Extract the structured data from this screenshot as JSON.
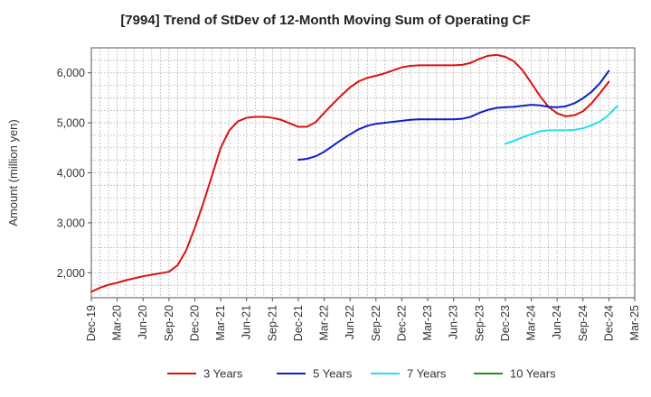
{
  "chart_data": {
    "type": "line",
    "title": "[7994]  Trend of StDev of 12-Month Moving Sum of Operating CF",
    "ylabel": "Amount (million yen)",
    "xlabel": "",
    "ylim": [
      1500,
      6500
    ],
    "y_ticks": [
      2000,
      3000,
      4000,
      5000,
      6000
    ],
    "y_tick_labels": [
      "2,000",
      "3,000",
      "4,000",
      "5,000",
      "6,000"
    ],
    "x_tick_labels": [
      "Dec-19",
      "Mar-20",
      "Jun-20",
      "Sep-20",
      "Dec-20",
      "Mar-21",
      "Jun-21",
      "Sep-21",
      "Dec-21",
      "Mar-22",
      "Jun-22",
      "Sep-22",
      "Dec-22",
      "Mar-23",
      "Jun-23",
      "Sep-23",
      "Dec-23",
      "Mar-24",
      "Jun-24",
      "Sep-24",
      "Dec-24",
      "Mar-25"
    ],
    "grid": true,
    "legend_position": "bottom",
    "series": [
      {
        "name": "3 Years",
        "color": "#dd1111",
        "start_index": 0,
        "values": [
          1620,
          1700,
          1760,
          1800,
          1850,
          1890,
          1930,
          1960,
          1990,
          2020,
          2150,
          2450,
          2900,
          3400,
          3950,
          4500,
          4850,
          5030,
          5100,
          5120,
          5120,
          5100,
          5060,
          4990,
          4920,
          4920,
          5010,
          5200,
          5380,
          5550,
          5710,
          5830,
          5900,
          5940,
          5990,
          6050,
          6110,
          6140,
          6150,
          6150,
          6150,
          6150,
          6150,
          6160,
          6200,
          6280,
          6340,
          6360,
          6320,
          6230,
          6050,
          5800,
          5540,
          5320,
          5190,
          5130,
          5150,
          5230,
          5390,
          5600,
          5820
        ]
      },
      {
        "name": "5 Years",
        "color": "#0d1fcc",
        "start_index": 24,
        "values": [
          4260,
          4280,
          4330,
          4420,
          4540,
          4660,
          4770,
          4870,
          4940,
          4980,
          5000,
          5020,
          5040,
          5060,
          5070,
          5070,
          5070,
          5070,
          5070,
          5080,
          5120,
          5200,
          5260,
          5300,
          5310,
          5320,
          5340,
          5360,
          5350,
          5320,
          5310,
          5330,
          5390,
          5490,
          5620,
          5800,
          6040
        ]
      },
      {
        "name": "7 Years",
        "color": "#22e0ee",
        "start_index": 48,
        "values": [
          4580,
          4640,
          4710,
          4770,
          4830,
          4850,
          4850,
          4850,
          4860,
          4890,
          4950,
          5030,
          5160,
          5340
        ]
      },
      {
        "name": "10 Years",
        "color": "#228b22",
        "start_index": 0,
        "values": []
      }
    ]
  }
}
